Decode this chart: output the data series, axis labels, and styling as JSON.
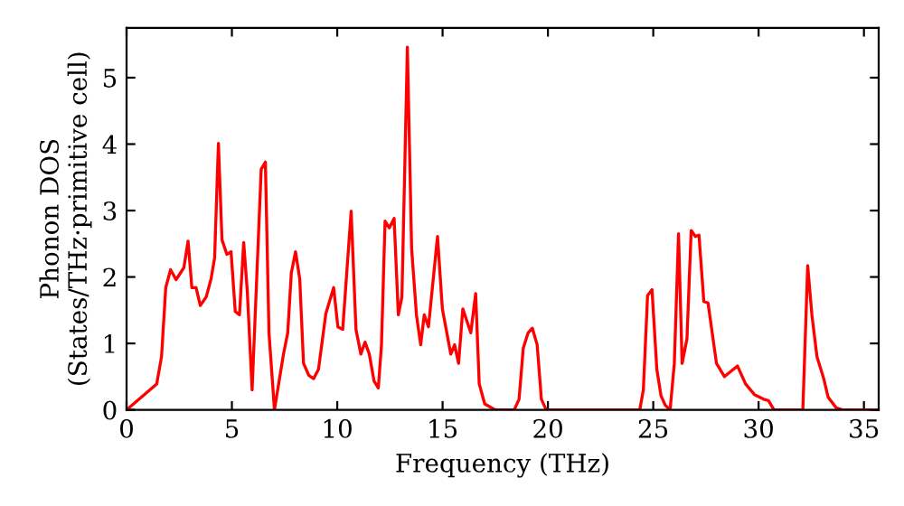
{
  "chart_data": {
    "type": "line",
    "xlabel": "Frequency (THz)",
    "ylabel": "Phonon DOS\n(States/THz·primitive cell)",
    "xlim": [
      0,
      35.7
    ],
    "ylim": [
      0,
      5.75
    ],
    "xticks": [
      0,
      5,
      10,
      15,
      20,
      25,
      30,
      35
    ],
    "yticks": [
      0,
      1,
      2,
      3,
      4,
      5
    ],
    "grid": false,
    "legend": false,
    "series": [
      {
        "color": "#ff0000",
        "x": [
          0,
          1.43,
          1.66,
          1.86,
          2.09,
          2.35,
          2.72,
          2.92,
          3.1,
          3.3,
          3.5,
          3.78,
          4.01,
          4.18,
          4.36,
          4.53,
          4.76,
          4.96,
          5.16,
          5.36,
          5.56,
          5.73,
          5.96,
          6.39,
          6.59,
          6.76,
          7.02,
          7.45,
          7.65,
          7.82,
          8.02,
          8.22,
          8.4,
          8.65,
          8.88,
          9.11,
          9.46,
          9.83,
          10.03,
          10.26,
          10.66,
          10.89,
          11.12,
          11.32,
          11.52,
          11.75,
          11.95,
          12.1,
          12.27,
          12.47,
          12.7,
          12.9,
          13.07,
          13.33,
          13.53,
          13.76,
          13.96,
          14.13,
          14.33,
          14.76,
          14.99,
          15.39,
          15.57,
          15.76,
          15.96,
          16.34,
          16.57,
          16.74,
          17.0,
          17.5,
          18.4,
          18.63,
          18.83,
          19.06,
          19.26,
          19.49,
          19.69,
          19.92,
          24.36,
          24.53,
          24.73,
          24.94,
          25.17,
          25.37,
          25.57,
          25.8,
          26.0,
          26.2,
          26.37,
          26.6,
          26.8,
          27.0,
          27.17,
          27.4,
          27.6,
          28.0,
          28.38,
          28.72,
          29.0,
          29.38,
          29.8,
          30.24,
          30.47,
          30.73,
          32.1,
          32.33,
          32.53,
          32.77,
          33.1,
          33.3,
          33.69,
          33.98,
          35.7
        ],
        "values": [
          0,
          0.39,
          0.8,
          1.84,
          2.11,
          1.96,
          2.14,
          2.54,
          1.84,
          1.84,
          1.57,
          1.7,
          1.97,
          2.29,
          4.01,
          2.56,
          2.34,
          2.38,
          1.48,
          1.43,
          2.52,
          1.79,
          0.3,
          3.62,
          3.73,
          1.16,
          0,
          0.84,
          1.16,
          2.06,
          2.38,
          1.97,
          0.7,
          0.52,
          0.47,
          0.61,
          1.45,
          1.84,
          1.25,
          1.21,
          2.99,
          1.21,
          0.84,
          1.02,
          0.84,
          0.43,
          0.33,
          0.98,
          2.84,
          2.74,
          2.88,
          1.43,
          1.7,
          5.46,
          2.43,
          1.43,
          0.98,
          1.43,
          1.25,
          2.61,
          1.52,
          0.84,
          0.98,
          0.7,
          1.52,
          1.16,
          1.75,
          0.39,
          0.09,
          0,
          0,
          0.16,
          0.93,
          1.16,
          1.23,
          0.98,
          0.16,
          0,
          0,
          0.3,
          1.72,
          1.81,
          0.61,
          0.21,
          0.07,
          0,
          0.7,
          2.65,
          0.7,
          1.07,
          2.7,
          2.61,
          2.63,
          1.63,
          1.61,
          0.7,
          0.5,
          0.59,
          0.66,
          0.39,
          0.23,
          0.16,
          0.14,
          0,
          0,
          2.17,
          1.43,
          0.8,
          0.46,
          0.19,
          0.03,
          0,
          0
        ]
      }
    ]
  }
}
